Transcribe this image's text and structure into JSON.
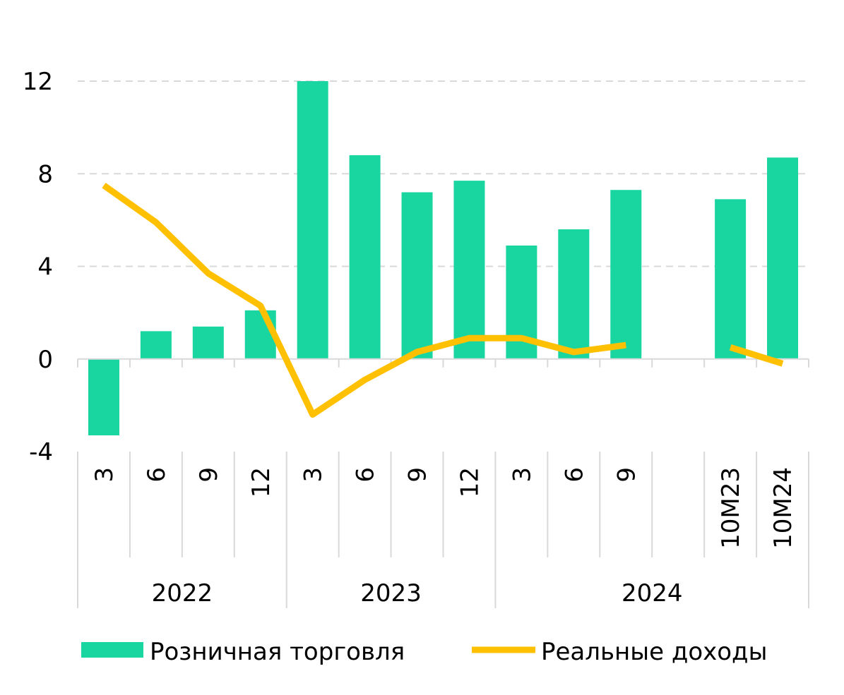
{
  "chart_data": {
    "type": "bar",
    "title": "",
    "xlabel": "",
    "ylabel": "",
    "ylim": [
      -4,
      12
    ],
    "yticks": [
      -4,
      0,
      4,
      8,
      12
    ],
    "grid": true,
    "legend_position": "bottom",
    "categories": [
      "3",
      "6",
      "9",
      "12",
      "3",
      "6",
      "9",
      "12",
      "3",
      "6",
      "9",
      "",
      "10M23",
      "10M24"
    ],
    "groups": [
      {
        "label": "2022",
        "start": 0,
        "end": 3
      },
      {
        "label": "2023",
        "start": 4,
        "end": 7
      },
      {
        "label": "2024",
        "start": 8,
        "end": 13
      }
    ],
    "series": [
      {
        "name": "Розничная торговля",
        "type": "bar",
        "color": "#19d6a0",
        "values": [
          -3.3,
          1.2,
          1.4,
          2.1,
          12.0,
          8.8,
          7.2,
          7.7,
          4.9,
          5.6,
          7.3,
          null,
          6.9,
          8.7
        ]
      },
      {
        "name": "Реальные доходы",
        "type": "line",
        "color": "#ffc000",
        "values": [
          7.5,
          5.9,
          3.7,
          2.3,
          -2.4,
          -0.9,
          0.3,
          0.9,
          0.9,
          0.3,
          0.6,
          null,
          0.5,
          -0.2
        ]
      }
    ]
  }
}
